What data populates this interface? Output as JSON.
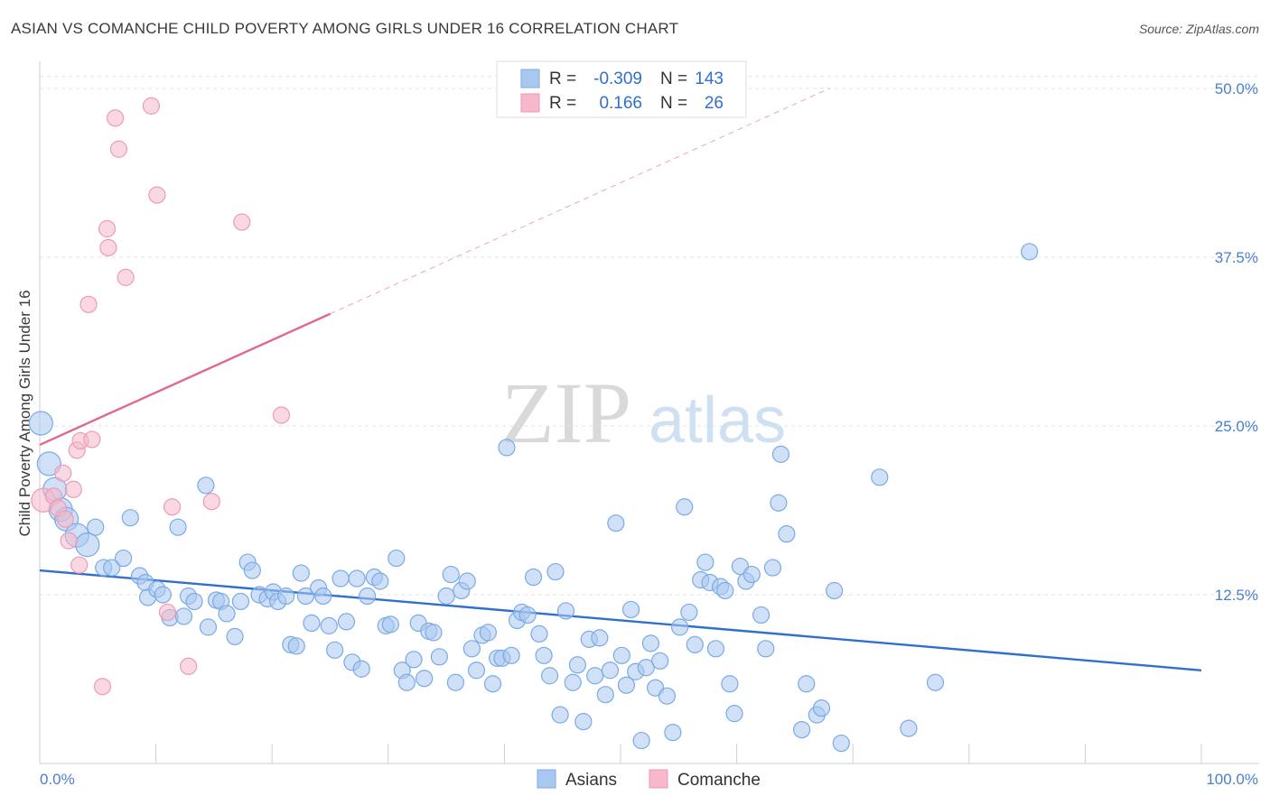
{
  "header": {
    "title": "ASIAN VS COMANCHE CHILD POVERTY AMONG GIRLS UNDER 16 CORRELATION CHART",
    "source": "Source: ZipAtlas.com"
  },
  "watermark": {
    "zip": "ZIP",
    "atlas": "atlas"
  },
  "legend": {
    "rows": [
      {
        "r_label": "R =",
        "r_value": "-0.309",
        "n_label": "N =",
        "n_value": "143",
        "color": "#a9c8f0"
      },
      {
        "r_label": "R =",
        "r_value": "0.166",
        "n_label": "N =",
        "n_value": "26",
        "color": "#f6b8ca"
      }
    ]
  },
  "bottom_legend": [
    {
      "label": "Asians",
      "color": "#a9c8f0"
    },
    {
      "label": "Comanche",
      "color": "#f6b8ca"
    }
  ],
  "chart_data": {
    "type": "scatter",
    "title": "ASIAN VS COMANCHE CHILD POVERTY AMONG GIRLS UNDER 16 CORRELATION CHART",
    "xlabel": "",
    "ylabel": "Child Poverty Among Girls Under 16",
    "xlim": [
      0,
      100
    ],
    "ylim": [
      0,
      52
    ],
    "x_tick_labels": [
      "0.0%",
      "100.0%"
    ],
    "y_ticks": [
      12.5,
      25.0,
      37.5,
      50.0
    ],
    "y_tick_labels": [
      "12.5%",
      "25.0%",
      "37.5%",
      "50.0%"
    ],
    "grid": true,
    "series": [
      {
        "name": "Asians",
        "color": "#7aaae6",
        "fill": "#a9c8f0",
        "trend": {
          "x": [
            0,
            100
          ],
          "y": [
            14.3,
            6.9
          ],
          "color": "#2f6fd0"
        },
        "points": [
          [
            0.1,
            25.2,
            2
          ],
          [
            0.8,
            22.2,
            2
          ],
          [
            1.3,
            20.3,
            2
          ],
          [
            1.8,
            18.8,
            2
          ],
          [
            2.3,
            18.1,
            2
          ],
          [
            3.2,
            16.9,
            2
          ],
          [
            4.1,
            16.2,
            2
          ],
          [
            4.8,
            17.5,
            1
          ],
          [
            5.5,
            14.5,
            1
          ],
          [
            6.2,
            14.5,
            1
          ],
          [
            7.2,
            15.2,
            1
          ],
          [
            7.8,
            18.2,
            1
          ],
          [
            8.6,
            13.9,
            1
          ],
          [
            9.1,
            13.4,
            1
          ],
          [
            9.3,
            12.3,
            1
          ],
          [
            10.1,
            12.9,
            1
          ],
          [
            10.6,
            12.5,
            1
          ],
          [
            11.2,
            10.8,
            1
          ],
          [
            11.9,
            17.5,
            1
          ],
          [
            12.4,
            10.9,
            1
          ],
          [
            12.8,
            12.4,
            1
          ],
          [
            13.3,
            12.0,
            1
          ],
          [
            14.3,
            20.6,
            1
          ],
          [
            14.5,
            10.1,
            1
          ],
          [
            15.2,
            12.1,
            1
          ],
          [
            15.6,
            12.0,
            1
          ],
          [
            16.1,
            11.1,
            1
          ],
          [
            16.8,
            9.4,
            1
          ],
          [
            17.3,
            12.0,
            1
          ],
          [
            17.9,
            14.9,
            1
          ],
          [
            18.3,
            14.3,
            1
          ],
          [
            18.9,
            12.5,
            1
          ],
          [
            19.6,
            12.2,
            1
          ],
          [
            20.1,
            12.7,
            1
          ],
          [
            20.5,
            12.0,
            1
          ],
          [
            21.2,
            12.4,
            1
          ],
          [
            21.6,
            8.8,
            1
          ],
          [
            22.1,
            8.7,
            1
          ],
          [
            22.5,
            14.1,
            1
          ],
          [
            22.9,
            12.4,
            1
          ],
          [
            23.4,
            10.4,
            1
          ],
          [
            24.0,
            13.0,
            1
          ],
          [
            24.4,
            12.4,
            1
          ],
          [
            24.9,
            10.2,
            1
          ],
          [
            25.4,
            8.4,
            1
          ],
          [
            25.9,
            13.7,
            1
          ],
          [
            26.4,
            10.5,
            1
          ],
          [
            26.9,
            7.5,
            1
          ],
          [
            27.3,
            13.7,
            1
          ],
          [
            27.7,
            7.0,
            1
          ],
          [
            28.2,
            12.4,
            1
          ],
          [
            28.8,
            13.8,
            1
          ],
          [
            29.3,
            13.5,
            1
          ],
          [
            29.8,
            10.2,
            1
          ],
          [
            30.2,
            10.3,
            1
          ],
          [
            30.7,
            15.2,
            1
          ],
          [
            31.2,
            6.9,
            1
          ],
          [
            31.6,
            6.0,
            1
          ],
          [
            32.2,
            7.7,
            1
          ],
          [
            32.6,
            10.4,
            1
          ],
          [
            33.1,
            6.3,
            1
          ],
          [
            33.5,
            9.8,
            1
          ],
          [
            33.9,
            9.7,
            1
          ],
          [
            34.4,
            7.9,
            1
          ],
          [
            35.0,
            12.4,
            1
          ],
          [
            35.4,
            14.0,
            1
          ],
          [
            35.8,
            6.0,
            1
          ],
          [
            36.3,
            12.8,
            1
          ],
          [
            36.8,
            13.5,
            1
          ],
          [
            37.2,
            8.5,
            1
          ],
          [
            37.6,
            6.9,
            1
          ],
          [
            38.1,
            9.5,
            1
          ],
          [
            38.6,
            9.7,
            1
          ],
          [
            39.0,
            5.9,
            1
          ],
          [
            39.4,
            7.8,
            1
          ],
          [
            39.8,
            7.8,
            1
          ],
          [
            40.2,
            23.4,
            1
          ],
          [
            40.6,
            8.0,
            1
          ],
          [
            41.1,
            10.6,
            1
          ],
          [
            41.5,
            11.2,
            1
          ],
          [
            42.0,
            11.0,
            1
          ],
          [
            42.5,
            13.8,
            1
          ],
          [
            43.0,
            9.6,
            1
          ],
          [
            43.4,
            8.0,
            1
          ],
          [
            43.9,
            6.5,
            1
          ],
          [
            44.4,
            14.2,
            1
          ],
          [
            44.8,
            3.6,
            1
          ],
          [
            45.3,
            11.3,
            1
          ],
          [
            45.9,
            6.0,
            1
          ],
          [
            46.3,
            7.3,
            1
          ],
          [
            46.8,
            3.1,
            1
          ],
          [
            47.3,
            9.2,
            1
          ],
          [
            47.8,
            6.5,
            1
          ],
          [
            48.2,
            9.3,
            1
          ],
          [
            48.7,
            5.1,
            1
          ],
          [
            49.1,
            6.9,
            1
          ],
          [
            49.6,
            17.8,
            1
          ],
          [
            50.1,
            8.0,
            1
          ],
          [
            50.5,
            5.8,
            1
          ],
          [
            50.9,
            11.4,
            1
          ],
          [
            51.3,
            6.8,
            1
          ],
          [
            51.8,
            1.7,
            1
          ],
          [
            52.2,
            7.1,
            1
          ],
          [
            52.6,
            8.9,
            1
          ],
          [
            53.0,
            5.6,
            1
          ],
          [
            53.4,
            7.6,
            1
          ],
          [
            54.0,
            5.0,
            1
          ],
          [
            54.5,
            2.3,
            1
          ],
          [
            55.1,
            10.1,
            1
          ],
          [
            55.5,
            19.0,
            1
          ],
          [
            55.9,
            11.2,
            1
          ],
          [
            56.4,
            8.8,
            1
          ],
          [
            56.9,
            13.6,
            1
          ],
          [
            57.3,
            14.9,
            1
          ],
          [
            57.7,
            13.4,
            1
          ],
          [
            58.2,
            8.5,
            1
          ],
          [
            58.6,
            13.1,
            1
          ],
          [
            59.0,
            12.8,
            1
          ],
          [
            59.4,
            5.9,
            1
          ],
          [
            59.8,
            3.7,
            1
          ],
          [
            60.3,
            14.6,
            1
          ],
          [
            60.8,
            13.5,
            1
          ],
          [
            61.3,
            14.0,
            1
          ],
          [
            62.1,
            11.0,
            1
          ],
          [
            62.5,
            8.5,
            1
          ],
          [
            63.1,
            14.5,
            1
          ],
          [
            63.6,
            19.3,
            1
          ],
          [
            63.8,
            22.9,
            1
          ],
          [
            64.3,
            17.0,
            1
          ],
          [
            65.6,
            2.5,
            1
          ],
          [
            66.0,
            5.9,
            1
          ],
          [
            66.9,
            3.6,
            1
          ],
          [
            67.3,
            4.1,
            1
          ],
          [
            68.4,
            12.8,
            1
          ],
          [
            69.0,
            1.5,
            1
          ],
          [
            72.3,
            21.2,
            1
          ],
          [
            74.8,
            2.6,
            1
          ],
          [
            77.1,
            6.0,
            1
          ],
          [
            85.2,
            37.9,
            1
          ]
        ]
      },
      {
        "name": "Comanche",
        "color": "#ee9ab5",
        "fill": "#f6b8ca",
        "trend": {
          "x": [
            0,
            25
          ],
          "y": [
            23.6,
            33.3
          ],
          "color": "#e0688f",
          "dashed_extension": {
            "x": [
              25,
              68
            ],
            "y": [
              33.3,
              50.0
            ]
          }
        },
        "points": [
          [
            0.3,
            19.5,
            2
          ],
          [
            1.2,
            19.8,
            1
          ],
          [
            1.6,
            18.9,
            1
          ],
          [
            2.0,
            21.5,
            1
          ],
          [
            2.2,
            18.1,
            1
          ],
          [
            2.5,
            16.5,
            1
          ],
          [
            2.9,
            20.3,
            1
          ],
          [
            3.2,
            23.2,
            1
          ],
          [
            3.5,
            23.9,
            1
          ],
          [
            3.4,
            14.7,
            1
          ],
          [
            4.2,
            34.0,
            1
          ],
          [
            4.5,
            24.0,
            1
          ],
          [
            5.4,
            5.7,
            1
          ],
          [
            5.8,
            39.6,
            1
          ],
          [
            5.9,
            38.2,
            1
          ],
          [
            6.5,
            47.8,
            1
          ],
          [
            6.8,
            45.5,
            1
          ],
          [
            7.4,
            36.0,
            1
          ],
          [
            9.6,
            48.7,
            1
          ],
          [
            10.1,
            42.1,
            1
          ],
          [
            11.0,
            11.2,
            1
          ],
          [
            11.4,
            19.0,
            1
          ],
          [
            12.8,
            7.2,
            1
          ],
          [
            14.8,
            19.4,
            1
          ],
          [
            17.4,
            40.1,
            1
          ],
          [
            20.8,
            25.8,
            1
          ]
        ]
      }
    ]
  }
}
